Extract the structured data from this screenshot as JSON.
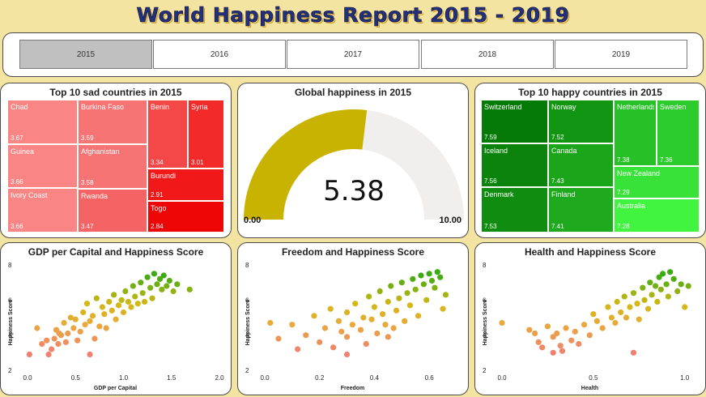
{
  "header": {
    "title": "World Happiness Report 2015 - 2019"
  },
  "tabs": [
    {
      "label": "2015",
      "active": true
    },
    {
      "label": "2016",
      "active": false
    },
    {
      "label": "2017",
      "active": false
    },
    {
      "label": "2018",
      "active": false
    },
    {
      "label": "2019",
      "active": false
    }
  ],
  "sad": {
    "title": "Top 10 sad countries in 2015",
    "items": [
      {
        "name": "Chad",
        "value": "3.67",
        "color": "#f98585"
      },
      {
        "name": "Guinea",
        "value": "3.66",
        "color": "#f98585"
      },
      {
        "name": "Ivory Coast",
        "value": "3.66",
        "color": "#f98585"
      },
      {
        "name": "Burkina Faso",
        "value": "3.59",
        "color": "#f77474"
      },
      {
        "name": "Afghanistan",
        "value": "3.58",
        "color": "#f77474"
      },
      {
        "name": "Rwanda",
        "value": "3.47",
        "color": "#f56464"
      },
      {
        "name": "Benin",
        "value": "3.34",
        "color": "#f44848"
      },
      {
        "name": "Syria",
        "value": "3.01",
        "color": "#f22a2a"
      },
      {
        "name": "Burundi",
        "value": "2.91",
        "color": "#f01818"
      },
      {
        "name": "Togo",
        "value": "2.84",
        "color": "#ee0606"
      }
    ]
  },
  "gauge": {
    "title": "Global happiness in 2015",
    "value": 5.38,
    "value_text": "5.38",
    "min": 0,
    "max": 10,
    "min_label": "0.00",
    "max_label": "10.00",
    "fill_color": "#c8b400",
    "track_color": "#f0efed"
  },
  "happy": {
    "title": "Top 10 happy countries in 2015",
    "items": [
      {
        "name": "Switzerland",
        "value": "7.59",
        "color": "#067a06"
      },
      {
        "name": "Iceland",
        "value": "7.56",
        "color": "#0c830c"
      },
      {
        "name": "Denmark",
        "value": "7.53",
        "color": "#108c10"
      },
      {
        "name": "Norway",
        "value": "7.52",
        "color": "#129512"
      },
      {
        "name": "Canada",
        "value": "7.43",
        "color": "#1aa51a"
      },
      {
        "name": "Finland",
        "value": "7.41",
        "color": "#1ea91e"
      },
      {
        "name": "Netherlands",
        "value": "7.38",
        "color": "#27c027"
      },
      {
        "name": "Sweden",
        "value": "7.36",
        "color": "#2ccc2c"
      },
      {
        "name": "New Zealand",
        "value": "7.29",
        "color": "#38e238"
      },
      {
        "name": "Australia",
        "value": "7.28",
        "color": "#40f440"
      }
    ]
  },
  "chart_data": [
    {
      "type": "scatter",
      "title": "GDP per Capital and Happiness Score",
      "xlabel": "GDP per Capital",
      "ylabel": "Happiness Score",
      "xlim": [
        0,
        2
      ],
      "ylim": [
        2,
        8
      ],
      "xticks": [
        "0.0",
        "0.5",
        "1.0",
        "1.5",
        "2.0"
      ],
      "yticks": [
        "2",
        "4",
        "6",
        "8"
      ],
      "points": [
        [
          0.02,
          2.9
        ],
        [
          0.1,
          4.4
        ],
        [
          0.15,
          3.5
        ],
        [
          0.2,
          3.7
        ],
        [
          0.22,
          2.9
        ],
        [
          0.25,
          3.2
        ],
        [
          0.28,
          3.8
        ],
        [
          0.3,
          4.3
        ],
        [
          0.32,
          3.5
        ],
        [
          0.35,
          4.0
        ],
        [
          0.38,
          4.7
        ],
        [
          0.4,
          3.6
        ],
        [
          0.42,
          4.1
        ],
        [
          0.45,
          5.0
        ],
        [
          0.48,
          4.4
        ],
        [
          0.5,
          4.9
        ],
        [
          0.52,
          3.7
        ],
        [
          0.55,
          4.2
        ],
        [
          0.58,
          5.3
        ],
        [
          0.6,
          4.6
        ],
        [
          0.62,
          5.8
        ],
        [
          0.65,
          4.8
        ],
        [
          0.68,
          5.1
        ],
        [
          0.7,
          3.8
        ],
        [
          0.72,
          6.1
        ],
        [
          0.75,
          4.5
        ],
        [
          0.78,
          5.6
        ],
        [
          0.8,
          5.2
        ],
        [
          0.82,
          4.4
        ],
        [
          0.85,
          5.9
        ],
        [
          0.88,
          5.4
        ],
        [
          0.9,
          6.3
        ],
        [
          0.92,
          4.9
        ],
        [
          0.95,
          5.7
        ],
        [
          0.98,
          6.0
        ],
        [
          1.0,
          5.3
        ],
        [
          1.02,
          6.5
        ],
        [
          1.05,
          5.9
        ],
        [
          1.08,
          5.6
        ],
        [
          1.1,
          6.8
        ],
        [
          1.12,
          6.2
        ],
        [
          1.15,
          5.8
        ],
        [
          1.18,
          7.0
        ],
        [
          1.2,
          6.4
        ],
        [
          1.22,
          5.9
        ],
        [
          1.25,
          7.3
        ],
        [
          1.28,
          6.7
        ],
        [
          1.3,
          6.1
        ],
        [
          1.32,
          7.5
        ],
        [
          1.35,
          6.9
        ],
        [
          1.38,
          7.2
        ],
        [
          1.4,
          6.6
        ],
        [
          1.42,
          7.4
        ],
        [
          1.45,
          6.8
        ],
        [
          1.48,
          7.1
        ],
        [
          1.52,
          6.5
        ],
        [
          1.56,
          6.9
        ],
        [
          1.69,
          6.6
        ],
        [
          0.65,
          2.9
        ],
        [
          0.33,
          4.1
        ]
      ]
    },
    {
      "type": "scatter",
      "title": "Freedom and Happiness Score",
      "xlabel": "Freedom",
      "ylabel": "Happiness Score",
      "xlim": [
        0,
        0.7
      ],
      "ylim": [
        2,
        8
      ],
      "xticks": [
        "0.0",
        "0.2",
        "0.4",
        "0.6"
      ],
      "yticks": [
        "2",
        "4",
        "6",
        "8"
      ],
      "points": [
        [
          0.02,
          4.7
        ],
        [
          0.05,
          3.8
        ],
        [
          0.1,
          4.6
        ],
        [
          0.12,
          3.2
        ],
        [
          0.15,
          4.0
        ],
        [
          0.18,
          5.1
        ],
        [
          0.2,
          3.6
        ],
        [
          0.22,
          4.4
        ],
        [
          0.24,
          5.5
        ],
        [
          0.25,
          3.3
        ],
        [
          0.27,
          4.8
        ],
        [
          0.28,
          4.2
        ],
        [
          0.3,
          5.3
        ],
        [
          0.3,
          3.9
        ],
        [
          0.32,
          4.6
        ],
        [
          0.33,
          5.8
        ],
        [
          0.35,
          4.3
        ],
        [
          0.36,
          5.0
        ],
        [
          0.37,
          3.5
        ],
        [
          0.38,
          6.2
        ],
        [
          0.39,
          4.9
        ],
        [
          0.4,
          5.6
        ],
        [
          0.41,
          4.1
        ],
        [
          0.42,
          6.5
        ],
        [
          0.43,
          5.2
        ],
        [
          0.44,
          4.6
        ],
        [
          0.45,
          5.9
        ],
        [
          0.46,
          6.8
        ],
        [
          0.47,
          4.4
        ],
        [
          0.48,
          5.4
        ],
        [
          0.49,
          6.1
        ],
        [
          0.5,
          7.0
        ],
        [
          0.51,
          4.8
        ],
        [
          0.52,
          6.4
        ],
        [
          0.53,
          5.7
        ],
        [
          0.54,
          7.2
        ],
        [
          0.55,
          6.6
        ],
        [
          0.56,
          5.1
        ],
        [
          0.57,
          7.4
        ],
        [
          0.58,
          6.9
        ],
        [
          0.59,
          6.0
        ],
        [
          0.6,
          7.5
        ],
        [
          0.61,
          7.1
        ],
        [
          0.62,
          6.7
        ],
        [
          0.63,
          7.6
        ],
        [
          0.64,
          7.3
        ],
        [
          0.65,
          5.5
        ],
        [
          0.66,
          6.3
        ],
        [
          0.45,
          3.9
        ],
        [
          0.3,
          2.9
        ]
      ]
    },
    {
      "type": "scatter",
      "title": "Health and Happiness Score",
      "xlabel": "Health",
      "ylabel": "Happiness Score",
      "xlim": [
        0,
        1.05
      ],
      "ylim": [
        2,
        8
      ],
      "xticks": [
        "0.0",
        "0.5",
        "1.0"
      ],
      "yticks": [
        "2",
        "4",
        "6",
        "8"
      ],
      "points": [
        [
          0.0,
          4.7
        ],
        [
          0.15,
          4.3
        ],
        [
          0.18,
          4.1
        ],
        [
          0.2,
          3.6
        ],
        [
          0.22,
          3.3
        ],
        [
          0.25,
          4.5
        ],
        [
          0.28,
          3.9
        ],
        [
          0.3,
          4.1
        ],
        [
          0.32,
          3.4
        ],
        [
          0.35,
          4.4
        ],
        [
          0.38,
          3.7
        ],
        [
          0.4,
          4.2
        ],
        [
          0.42,
          3.5
        ],
        [
          0.45,
          4.6
        ],
        [
          0.48,
          4.0
        ],
        [
          0.5,
          5.2
        ],
        [
          0.52,
          4.8
        ],
        [
          0.55,
          4.4
        ],
        [
          0.58,
          5.6
        ],
        [
          0.6,
          5.0
        ],
        [
          0.62,
          4.7
        ],
        [
          0.63,
          5.9
        ],
        [
          0.65,
          5.3
        ],
        [
          0.67,
          6.2
        ],
        [
          0.68,
          5.0
        ],
        [
          0.7,
          5.6
        ],
        [
          0.72,
          6.4
        ],
        [
          0.74,
          5.8
        ],
        [
          0.75,
          4.9
        ],
        [
          0.77,
          6.7
        ],
        [
          0.78,
          6.0
        ],
        [
          0.8,
          5.5
        ],
        [
          0.81,
          7.0
        ],
        [
          0.82,
          6.3
        ],
        [
          0.84,
          6.8
        ],
        [
          0.85,
          5.9
        ],
        [
          0.86,
          7.3
        ],
        [
          0.87,
          6.6
        ],
        [
          0.88,
          7.5
        ],
        [
          0.9,
          6.9
        ],
        [
          0.91,
          6.2
        ],
        [
          0.92,
          7.6
        ],
        [
          0.94,
          7.2
        ],
        [
          0.96,
          6.5
        ],
        [
          0.98,
          6.9
        ],
        [
          1.0,
          5.6
        ],
        [
          1.02,
          6.8
        ],
        [
          0.72,
          3.0
        ],
        [
          0.33,
          3.1
        ],
        [
          0.28,
          3.0
        ]
      ]
    }
  ]
}
